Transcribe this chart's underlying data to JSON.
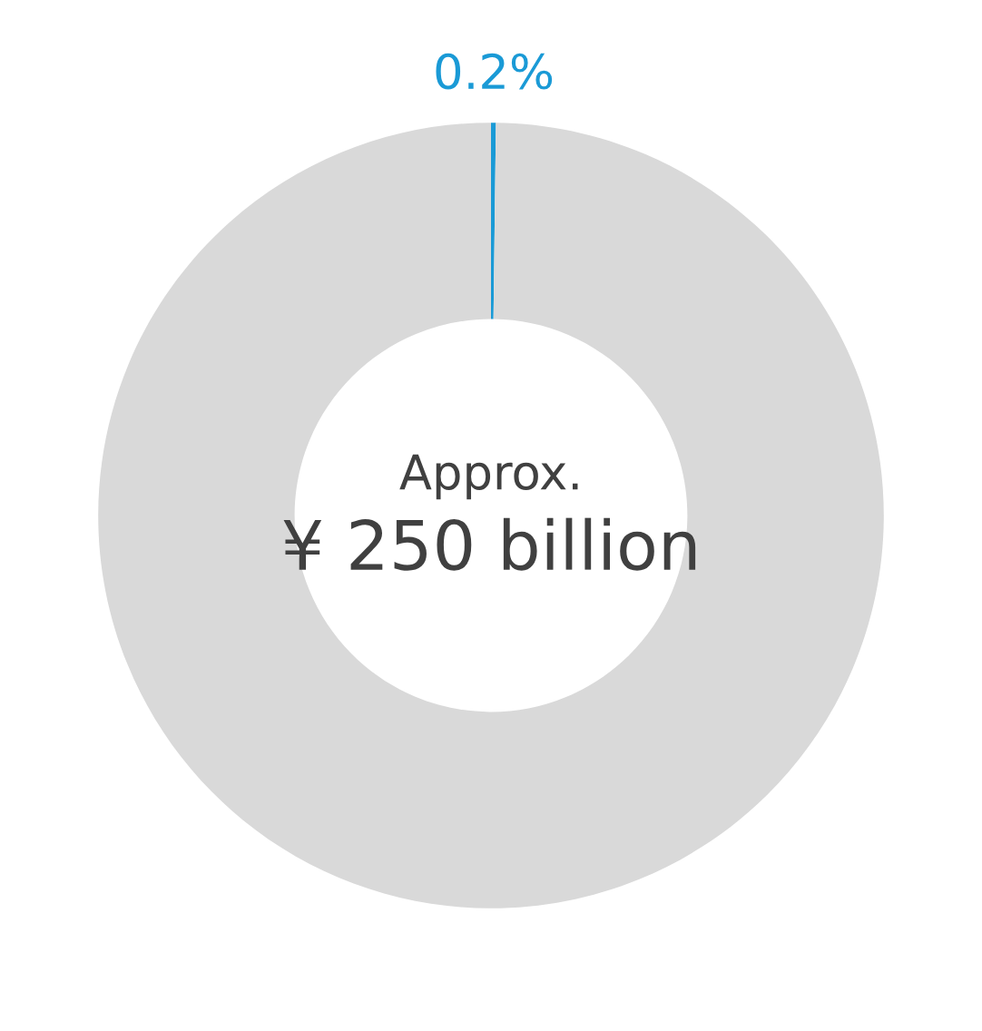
{
  "chart_data": {
    "type": "donut",
    "categories": [
      null,
      null
    ],
    "values": [
      0.2,
      99.8
    ],
    "colors": [
      "#1a9ad6",
      "#d9d9d9"
    ],
    "value_labels": [
      "0.2%",
      null
    ],
    "annotations": [
      "Approx.",
      "¥ 250 billion"
    ]
  }
}
